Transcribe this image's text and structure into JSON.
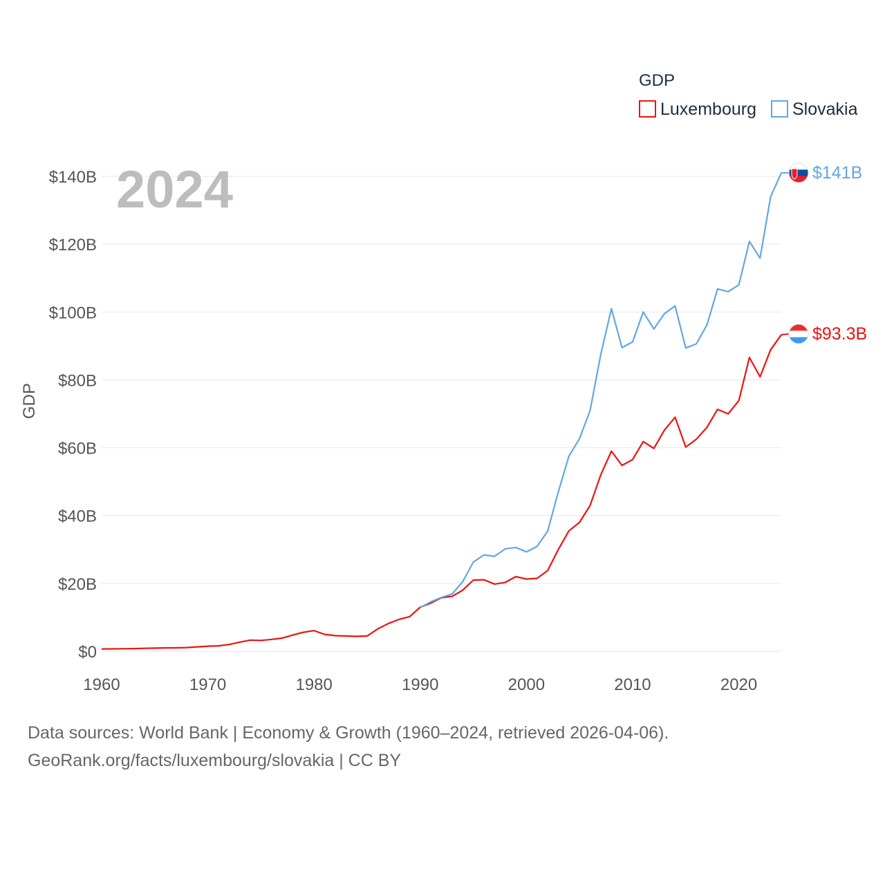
{
  "chart_data": {
    "type": "line",
    "watermark_year": "2024",
    "ylabel": "GDP",
    "ylim": [
      0,
      150000000000
    ],
    "xlim": [
      1960,
      2024
    ],
    "y_ticks": [
      {
        "value": 0,
        "label": "$0"
      },
      {
        "value": 20000000000,
        "label": "$20B"
      },
      {
        "value": 40000000000,
        "label": "$40B"
      },
      {
        "value": 60000000000,
        "label": "$60B"
      },
      {
        "value": 80000000000,
        "label": "$80B"
      },
      {
        "value": 100000000000,
        "label": "$100B"
      },
      {
        "value": 120000000000,
        "label": "$120B"
      },
      {
        "value": 140000000000,
        "label": "$140B"
      }
    ],
    "x_ticks": [
      {
        "value": 1960,
        "label": "1960"
      },
      {
        "value": 1970,
        "label": "1970"
      },
      {
        "value": 1980,
        "label": "1980"
      },
      {
        "value": 1990,
        "label": "1990"
      },
      {
        "value": 2000,
        "label": "2000"
      },
      {
        "value": 2010,
        "label": "2010"
      },
      {
        "value": 2020,
        "label": "2020"
      }
    ],
    "legend": {
      "title": "GDP",
      "position": "top-right"
    },
    "series": [
      {
        "name": "Luxembourg",
        "color": "#ee1111",
        "end_label": "$93.3B",
        "flag_icon": "luxembourg-flag-icon",
        "flag_colors": [
          "#ef2b2d",
          "#ffffff",
          "#3d98f5"
        ],
        "x": [
          1960,
          1961,
          1962,
          1963,
          1964,
          1965,
          1966,
          1967,
          1968,
          1969,
          1970,
          1971,
          1972,
          1973,
          1974,
          1975,
          1976,
          1977,
          1978,
          1979,
          1980,
          1981,
          1982,
          1983,
          1984,
          1985,
          1986,
          1987,
          1988,
          1989,
          1990,
          1991,
          1992,
          1993,
          1994,
          1995,
          1996,
          1997,
          1998,
          1999,
          2000,
          2001,
          2002,
          2003,
          2004,
          2005,
          2006,
          2007,
          2008,
          2009,
          2010,
          2011,
          2012,
          2013,
          2014,
          2015,
          2016,
          2017,
          2018,
          2019,
          2020,
          2021,
          2022,
          2023,
          2024
        ],
        "values": [
          700000000.0,
          720000000.0,
          750000000.0,
          800000000.0,
          880000000.0,
          930000000.0,
          1000000000.0,
          1020000000.0,
          1100000000.0,
          1300000000.0,
          1500000000.0,
          1600000000.0,
          2000000000.0,
          2700000000.0,
          3300000000.0,
          3200000000.0,
          3500000000.0,
          3900000000.0,
          4800000000.0,
          5600000000.0,
          6100000000.0,
          5000000000.0,
          4600000000.0,
          4500000000.0,
          4400000000.0,
          4500000000.0,
          6600000000.0,
          8200000000.0,
          9400000000.0,
          10200000000.0,
          13000000000.0,
          14200000000.0,
          15800000000.0,
          16200000000.0,
          18000000000.0,
          21000000000.0,
          21100000000.0,
          19800000000.0,
          20300000000.0,
          22000000000.0,
          21300000000.0,
          21500000000.0,
          23800000000.0,
          30000000000.0,
          35500000000.0,
          38000000000.0,
          43000000000.0,
          52000000000.0,
          59000000000.0,
          54800000000.0,
          56500000000.0,
          61800000000.0,
          59800000000.0,
          65200000000.0,
          69000000000.0,
          60200000000.0,
          62500000000.0,
          66000000000.0,
          71300000000.0,
          70000000000.0,
          73900000000.0,
          86600000000.0,
          80900000000.0,
          88900000000.0,
          93300000000.0
        ]
      },
      {
        "name": "Slovakia",
        "color": "#64a6e0",
        "end_label": "$141B",
        "flag_icon": "slovakia-flag-icon",
        "flag_colors": [
          "#ffffff",
          "#0b4ea2",
          "#ee1c25"
        ],
        "x": [
          1990,
          1991,
          1992,
          1993,
          1994,
          1995,
          1996,
          1997,
          1998,
          1999,
          2000,
          2001,
          2002,
          2003,
          2004,
          2005,
          2006,
          2007,
          2008,
          2009,
          2010,
          2011,
          2012,
          2013,
          2014,
          2015,
          2016,
          2017,
          2018,
          2019,
          2020,
          2021,
          2022,
          2023,
          2024
        ],
        "values": [
          12900000000.0,
          14600000000.0,
          15900000000.0,
          16900000000.0,
          20500000000.0,
          26300000000.0,
          28400000000.0,
          28000000000.0,
          30200000000.0,
          30600000000.0,
          29300000000.0,
          30900000000.0,
          35400000000.0,
          47000000000.0,
          57500000000.0,
          62700000000.0,
          71000000000.0,
          87500000000.0,
          101000000000.0,
          89500000000.0,
          91200000000.0,
          100000000000.0,
          95000000000.0,
          99500000000.0,
          101800000000.0,
          89400000000.0,
          90600000000.0,
          96200000000.0,
          106800000000.0,
          106000000000.0,
          108000000000.0,
          120800000000.0,
          115900000000.0,
          134000000000.0,
          141000000000.0
        ]
      }
    ]
  },
  "source": {
    "line1": "Data sources: World Bank | Economy & Growth (1960–2024, retrieved 2026-04-06).",
    "line2": "GeoRank.org/facts/luxembourg/slovakia | CC BY"
  }
}
